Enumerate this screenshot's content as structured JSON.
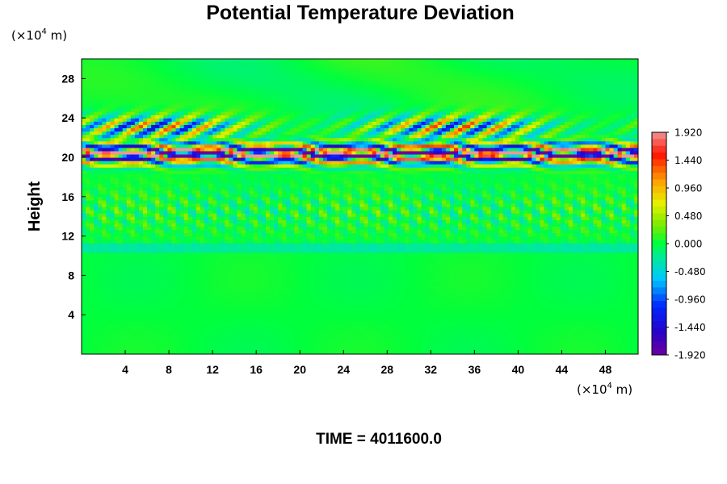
{
  "chart_data": {
    "type": "heatmap",
    "title": "Potential Temperature Deviation",
    "ylabel": "Height",
    "xlabel": "",
    "x_unit": {
      "prefix": "(×10",
      "exp": "4",
      "suffix": " m)"
    },
    "y_unit": {
      "prefix": "(×10",
      "exp": "4",
      "suffix": " m)"
    },
    "xlim": [
      0,
      51
    ],
    "ylim": [
      0,
      30
    ],
    "x_ticks": [
      "4",
      "8",
      "12",
      "16",
      "20",
      "24",
      "28",
      "32",
      "36",
      "40",
      "44",
      "48"
    ],
    "y_ticks": [
      "4",
      "8",
      "12",
      "16",
      "20",
      "24",
      "28"
    ],
    "colorbar": {
      "min": -1.92,
      "max": 1.92,
      "levels": 33,
      "tick_labels": [
        "1.920",
        "1.440",
        "0.960",
        "0.480",
        "0.000",
        "-0.480",
        "-0.960",
        "-1.440",
        "-1.920"
      ]
    },
    "features": [
      {
        "description": "strong alternating positive/negative deviation layer",
        "y_range": [
          19,
          22
        ],
        "x_range": [
          0,
          51
        ]
      },
      {
        "description": "wave pattern above layer",
        "y_range": [
          22,
          25
        ],
        "x_range": [
          0,
          51
        ]
      },
      {
        "description": "scattered small anomalies",
        "y_range": [
          11,
          18
        ],
        "x_range": [
          0,
          51
        ]
      },
      {
        "description": "near-zero field",
        "y_range": [
          0,
          11
        ],
        "x_range": [
          0,
          51
        ]
      }
    ]
  },
  "footer": {
    "time_label": "TIME = 4011600.0"
  }
}
